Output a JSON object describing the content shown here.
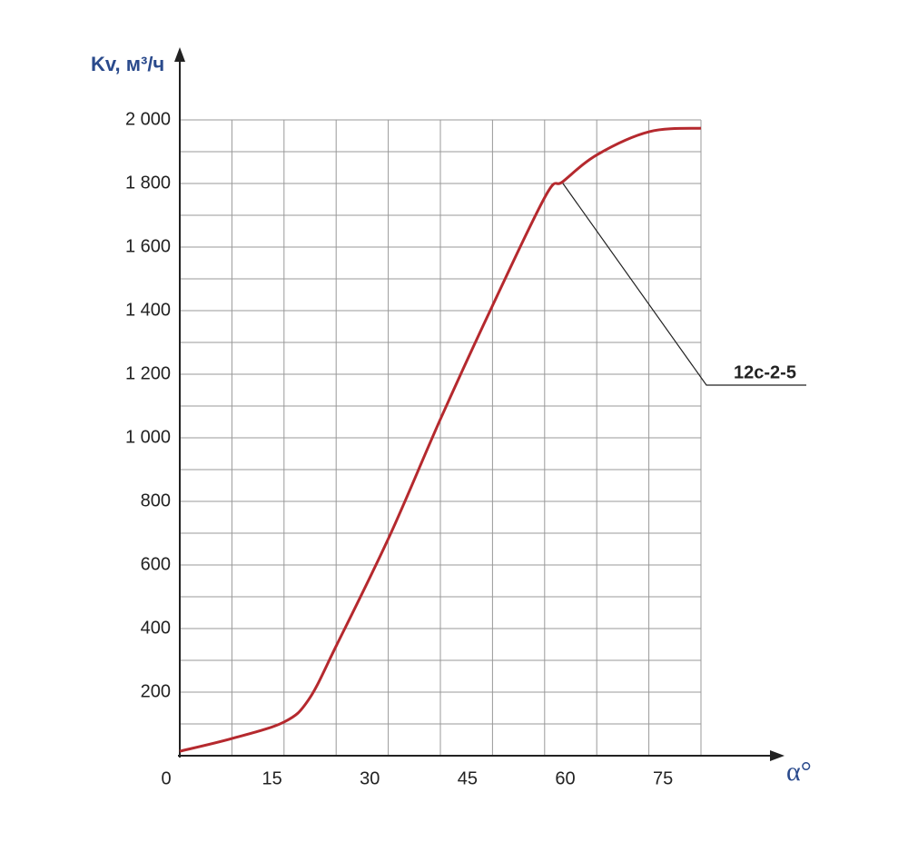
{
  "chart_data": {
    "type": "line",
    "x_label": "α°",
    "y_label": "Kv, м³/ч",
    "xlim": [
      0,
      80
    ],
    "ylim": [
      0,
      2000
    ],
    "xticks": [
      0,
      15,
      30,
      45,
      60,
      75
    ],
    "yticks": [
      200,
      400,
      600,
      800,
      {
        "value": 1000,
        "label": "1 000"
      },
      {
        "value": 1200,
        "label": "1 200"
      },
      {
        "value": 1400,
        "label": "1 400"
      },
      {
        "value": 1600,
        "label": "1 600"
      },
      {
        "value": 1800,
        "label": "1 800"
      },
      {
        "value": 2000,
        "label": "2 000"
      }
    ],
    "grid": true,
    "series": [
      {
        "name": "12c-2-5",
        "color": "#b5292e",
        "x": [
          0,
          8,
          16,
          19.8,
          24.1,
          32.2,
          40.1,
          48.1,
          56.2,
          58.8,
          64.1,
          72.1,
          80
        ],
        "values": [
          14,
          54,
          106,
          177,
          349,
          691,
          1063,
          1420,
          1763,
          1806,
          1891,
          1963,
          1974
        ]
      }
    ]
  }
}
